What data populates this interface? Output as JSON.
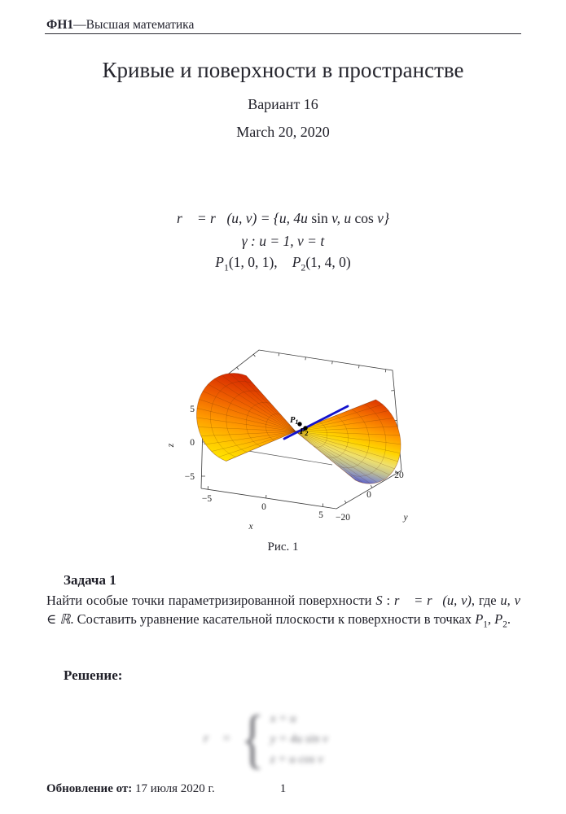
{
  "page": {
    "background": "#ffffff",
    "text_color": "#1f1f28"
  },
  "header": {
    "course_bold": "ФН1",
    "course_rest": "—Высшая математика"
  },
  "title_block": {
    "title": "Кривые и поверхности в пространстве",
    "variant": "Вариант 16",
    "date": "March 20, 2020"
  },
  "formulas": {
    "line1_a": "r⃗ = r⃗(u, v) = {u, 4u ",
    "line1_sin": "sin",
    "line1_b": " v, u ",
    "line1_cos": "cos",
    "line1_c": " v}",
    "line2": "γ : u = 1, v = t",
    "p1_name": "P",
    "p1_sub": "1",
    "p1_args": "(1, 0, 1),",
    "gap": "   ",
    "p2_name": "P",
    "p2_sub": "2",
    "p2_args": "(1, 4, 0)"
  },
  "figure": {
    "caption": "Рис. 1",
    "axis_labels": {
      "x": "x",
      "y": "y",
      "z": "z"
    },
    "x_ticks": [
      "−5",
      "0",
      "5"
    ],
    "y_ticks": [
      "−20",
      "0",
      "20"
    ],
    "z_ticks": [
      "5",
      "0",
      "−5"
    ],
    "curve_color": "#1212cc",
    "point1": {
      "base": "P",
      "sub": "1"
    },
    "point2": {
      "base": "P",
      "sub": "2"
    },
    "gradient_left": [
      [
        0,
        "#d42500"
      ],
      [
        0.28,
        "#ef5f00"
      ],
      [
        0.52,
        "#ff9a00"
      ],
      [
        0.72,
        "#ffc800"
      ],
      [
        0.9,
        "#ffe800"
      ],
      [
        0.965,
        "#f5ef6a"
      ],
      [
        1,
        "#5858d8"
      ]
    ],
    "gradient_right": [
      [
        0,
        "#d42500"
      ],
      [
        0.2,
        "#ef5f00"
      ],
      [
        0.38,
        "#ff9a00"
      ],
      [
        0.55,
        "#ffd400"
      ],
      [
        0.68,
        "#efe06e"
      ],
      [
        0.78,
        "#c2c292"
      ],
      [
        0.87,
        "#8b93c0"
      ],
      [
        1,
        "#2222cc"
      ]
    ]
  },
  "task": {
    "heading": "Задача 1",
    "text_1": "Найти особые точки параметризированной поверхности ",
    "math_s": "S",
    "text_colon": " : ",
    "math_r": "r⃗ = r⃗(u, v)",
    "text_2": ", где ",
    "math_uv": "u, v ∈ ℝ",
    "text_3": ". Составить уравнение касательной плоскости к поверхности в точках ",
    "p1": "P",
    "p1_sub": "1",
    "comma": ", ",
    "p2": "P",
    "p2_sub": "2",
    "period": "."
  },
  "solution": {
    "heading": "Решение:",
    "vec": "r⃗ =",
    "brace": "{",
    "lines": [
      "x = u",
      "y = 4u sin v",
      "z = u cos v"
    ]
  },
  "footer": {
    "updated_bold": "Обновление от:",
    "updated_date": " 17 июля 2020 г.",
    "page_number": "1"
  }
}
